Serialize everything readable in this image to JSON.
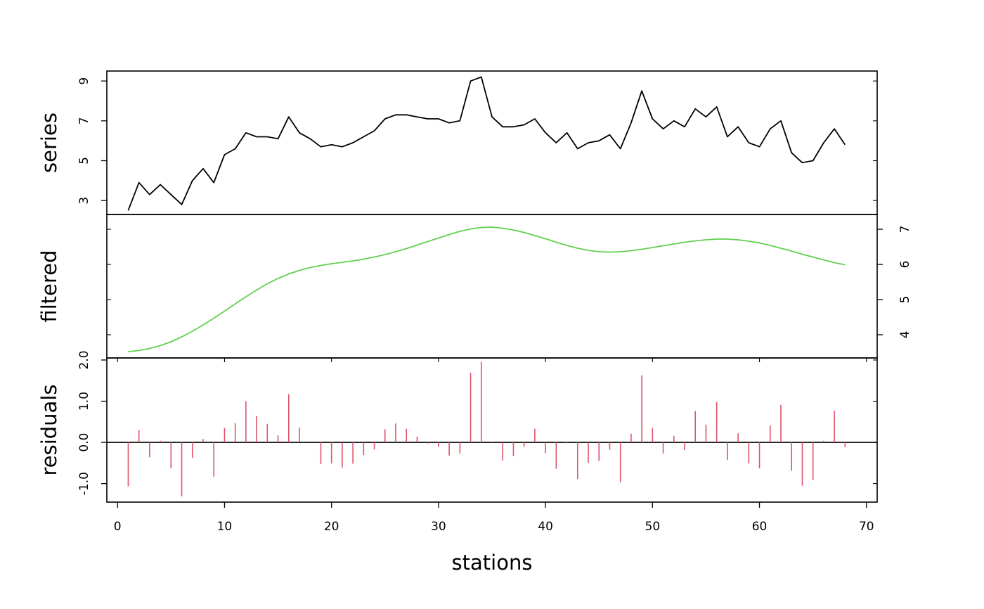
{
  "chart_data": {
    "type": "line",
    "xlabel": "stations",
    "xlim": [
      -1,
      71
    ],
    "x_ticks": [
      0,
      10,
      20,
      30,
      40,
      50,
      60,
      70
    ],
    "x": [
      1,
      2,
      3,
      4,
      5,
      6,
      7,
      8,
      9,
      10,
      11,
      12,
      13,
      14,
      15,
      16,
      17,
      18,
      19,
      20,
      21,
      22,
      23,
      24,
      25,
      26,
      27,
      28,
      29,
      30,
      31,
      32,
      33,
      34,
      35,
      36,
      37,
      38,
      39,
      40,
      41,
      42,
      43,
      44,
      45,
      46,
      47,
      48,
      49,
      50,
      51,
      52,
      53,
      54,
      55,
      56,
      57,
      58,
      59,
      60,
      61,
      62,
      63,
      64,
      65,
      66,
      67,
      68
    ],
    "panels": [
      {
        "ylabel": "series",
        "color": "#000000",
        "ylim": [
          2.3,
          9.5
        ],
        "y_ticks": [
          3,
          5,
          7,
          9
        ],
        "y_tick_labels": [
          "3",
          "5",
          "7",
          "9"
        ],
        "tick_side": "left",
        "style": "line",
        "values": [
          2.5,
          3.9,
          3.3,
          3.8,
          3.3,
          2.8,
          4.0,
          4.6,
          3.9,
          5.3,
          5.6,
          6.4,
          6.2,
          6.2,
          6.1,
          7.2,
          6.4,
          6.1,
          5.7,
          5.8,
          5.7,
          5.9,
          6.2,
          6.5,
          7.1,
          7.3,
          7.3,
          7.2,
          7.1,
          7.1,
          6.9,
          7.0,
          9.0,
          9.2,
          7.2,
          6.7,
          6.7,
          6.8,
          7.1,
          6.4,
          5.9,
          6.4,
          5.6,
          5.9,
          6.0,
          6.3,
          5.6,
          6.9,
          8.5,
          7.1,
          6.6,
          7.0,
          6.7,
          7.6,
          7.2,
          7.7,
          6.2,
          6.7,
          5.9,
          5.7,
          6.6,
          7.0,
          5.4,
          4.9,
          5.0,
          5.9,
          6.6,
          5.8
        ]
      },
      {
        "ylabel": "filtered",
        "color": "#61D04F",
        "ylim": [
          3.34,
          7.42
        ],
        "y_ticks": [
          4,
          5,
          6,
          7
        ],
        "y_tick_labels": [
          "4",
          "5",
          "6",
          "7"
        ],
        "tick_side": "right",
        "style": "line",
        "values": [
          3.52,
          3.55,
          3.61,
          3.69,
          3.8,
          3.94,
          4.1,
          4.28,
          4.47,
          4.67,
          4.88,
          5.08,
          5.27,
          5.45,
          5.6,
          5.73,
          5.83,
          5.91,
          5.97,
          6.02,
          6.06,
          6.1,
          6.15,
          6.21,
          6.28,
          6.36,
          6.45,
          6.55,
          6.65,
          6.75,
          6.85,
          6.94,
          7.01,
          7.05,
          7.06,
          7.03,
          6.98,
          6.91,
          6.82,
          6.73,
          6.63,
          6.54,
          6.46,
          6.4,
          6.36,
          6.35,
          6.36,
          6.39,
          6.43,
          6.48,
          6.53,
          6.58,
          6.63,
          6.67,
          6.7,
          6.72,
          6.72,
          6.7,
          6.66,
          6.61,
          6.54,
          6.46,
          6.38,
          6.29,
          6.21,
          6.13,
          6.05,
          5.99
        ]
      },
      {
        "ylabel": "residuals",
        "color": "#DF536B",
        "ylim": [
          -1.45,
          2.05
        ],
        "y_ticks": [
          -1.0,
          0.0,
          1.0,
          2.0
        ],
        "y_tick_labels": [
          "-1.0",
          "0.0",
          "1.0",
          "2.0"
        ],
        "tick_side": "left",
        "style": "spikes",
        "values": [
          -1.07,
          0.3,
          -0.36,
          0.04,
          -0.63,
          -1.31,
          -0.38,
          0.08,
          -0.83,
          0.35,
          0.47,
          1.0,
          0.64,
          0.45,
          0.17,
          1.17,
          0.36,
          0.0,
          -0.53,
          -0.51,
          -0.61,
          -0.52,
          -0.31,
          -0.17,
          0.32,
          0.46,
          0.33,
          0.14,
          -0.03,
          -0.11,
          -0.32,
          -0.27,
          1.69,
          1.96,
          0.02,
          -0.44,
          -0.33,
          -0.11,
          0.33,
          -0.26,
          -0.64,
          -0.02,
          -0.89,
          -0.5,
          -0.45,
          -0.18,
          -0.97,
          0.21,
          1.63,
          0.35,
          -0.27,
          0.16,
          -0.19,
          0.76,
          0.43,
          0.98,
          -0.43,
          0.22,
          -0.51,
          -0.63,
          0.41,
          0.91,
          -0.69,
          -1.05,
          -0.92,
          0.04,
          0.77,
          -0.12
        ]
      }
    ]
  }
}
